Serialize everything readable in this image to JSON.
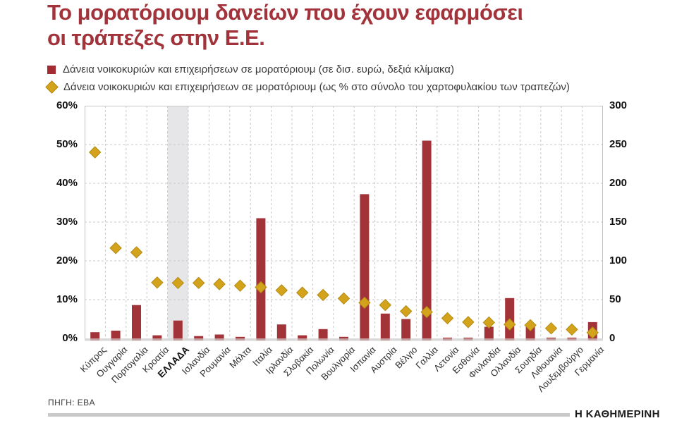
{
  "title": {
    "line1": "Το μορατόριουμ δανείων που έχουν εφαρμόσει",
    "line2": "οι τράπεζες στην Ε.Ε."
  },
  "legend": [
    {
      "icon": "square-icon",
      "color": "#a42b31",
      "label": "Δάνεια νοικοκυριών και επιχειρήσεων σε μορατόριουμ (σε δισ. ευρώ, δεξιά κλίμακα)"
    },
    {
      "icon": "diamond-icon",
      "color": "#d2a31b",
      "label": "Δάνεια νοικοκυριών και επιχειρήσεων σε μορατόριουμ (ως % στο σύνολο του χαρτοφυλακίου των τραπεζών)"
    }
  ],
  "colors": {
    "bar": "#a23338",
    "diamond": "#d2a31b",
    "diamond_stroke": "#b48a12",
    "title": "#a2333a",
    "grid": "#c9c9c9",
    "axis": "#c2c2c2",
    "highlight_band": "#e6e6e8",
    "baseline_strip": "#d9d9d9"
  },
  "footer": {
    "source": "ΠΗΓΗ: EBA",
    "brand": "Η ΚΑΘΗΜΕΡΙΝΗ"
  },
  "chart_data": {
    "type": "bar",
    "subtype": "bar + diamond scatter combo, dual axis",
    "categories": [
      "Κύπρος",
      "Ουγγαρία",
      "Πορτογαλία",
      "Κροατία",
      "ΕΛΛΑΔΑ",
      "Ισλανδία",
      "Ρουμανία",
      "Μάλτα",
      "Ιταλία",
      "Ιρλανδία",
      "Σλοβακία",
      "Πολωνία",
      "Βουλγαρία",
      "Ισπανία",
      "Αυστρία",
      "Βέλγιο",
      "Γαλλία",
      "Λετονία",
      "Εσθονία",
      "Φινλανδία",
      "Ολλανδία",
      "Σουηδία",
      "Λιθουανία",
      "Λουξεμβούργο",
      "Γερμανία"
    ],
    "series": [
      {
        "name": "Δάνεια νοικοκυριών και επιχειρήσεων σε μορατόριουμ (σε δισ. ευρώ, δεξιά κλίμακα)",
        "type": "bar",
        "axis": "right",
        "values": [
          8,
          10,
          43,
          4,
          23,
          3,
          5,
          2,
          155,
          18,
          4,
          12,
          2,
          186,
          32,
          25,
          255,
          1,
          1,
          15,
          52,
          19,
          1,
          1,
          21
        ]
      },
      {
        "name": "Δάνεια νοικοκυριών και επιχειρήσεων σε μορατόριουμ (ως % στο σύνολο του χαρτοφυλακίου των τραπεζών)",
        "type": "scatter",
        "marker": "diamond",
        "axis": "left",
        "values": [
          48,
          23.3,
          22.2,
          14.4,
          14.3,
          14.3,
          14.0,
          13.6,
          13.2,
          12.4,
          11.8,
          11.2,
          10.3,
          9.2,
          8.6,
          7.0,
          6.8,
          5.2,
          4.2,
          4.1,
          3.6,
          3.4,
          2.6,
          2.3,
          1.5
        ]
      }
    ],
    "left_axis": {
      "ticks": [
        "0%",
        "10%",
        "20%",
        "30%",
        "40%",
        "50%",
        "60%"
      ],
      "min": 0,
      "max": 60
    },
    "right_axis": {
      "ticks": [
        "0",
        "50",
        "100",
        "150",
        "200",
        "250",
        "300"
      ],
      "min": 0,
      "max": 300
    },
    "highlight_category": "ΕΛΛΑΔΑ",
    "grid": "dashed horizontal and vertical",
    "legend_position": "top-left"
  }
}
